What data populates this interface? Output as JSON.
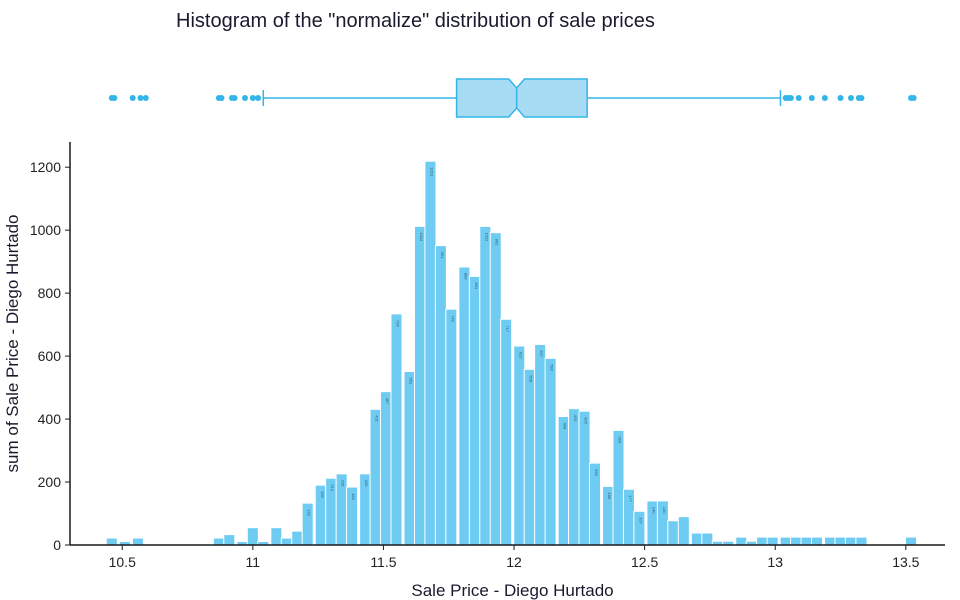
{
  "chart_data": {
    "type": "bar",
    "title": "Histogram of the \"normalize\" distribution of sale prices",
    "xlabel": "Sale Price - Diego Hurtado",
    "ylabel": "sum of Sale Price - Diego Hurtado",
    "xlim": [
      10.3,
      13.65
    ],
    "ylim": [
      0,
      1280
    ],
    "x_ticks": [
      10.5,
      11,
      11.5,
      12,
      12.5,
      13,
      13.5
    ],
    "y_ticks": [
      0,
      200,
      400,
      600,
      800,
      1000,
      1200
    ],
    "bin_width": 0.0423,
    "x": [
      10.46,
      10.51,
      10.56,
      10.87,
      10.91,
      10.96,
      11.0,
      11.04,
      11.09,
      11.13,
      11.17,
      11.21,
      11.26,
      11.3,
      11.34,
      11.38,
      11.43,
      11.47,
      11.51,
      11.55,
      11.6,
      11.64,
      11.68,
      11.72,
      11.76,
      11.81,
      11.85,
      11.89,
      11.93,
      11.97,
      12.02,
      12.06,
      12.1,
      12.14,
      12.19,
      12.23,
      12.27,
      12.31,
      12.36,
      12.4,
      12.44,
      12.48,
      12.53,
      12.57,
      12.61,
      12.65,
      12.7,
      12.74,
      12.78,
      12.82,
      12.87,
      12.91,
      12.95,
      12.99,
      13.04,
      13.08,
      13.12,
      13.16,
      13.21,
      13.25,
      13.29,
      13.33,
      13.52
    ],
    "values": [
      22,
      11,
      22,
      22,
      33,
      11,
      55,
      11,
      55,
      22,
      44,
      133,
      190,
      212,
      226,
      184,
      226,
      431,
      487,
      734,
      551,
      1012,
      1219,
      951,
      749,
      883,
      853,
      1012,
      992,
      717,
      632,
      558,
      637,
      593,
      408,
      433,
      425,
      260,
      186,
      364,
      177,
      107,
      140,
      140,
      77,
      90,
      38,
      38,
      12,
      12,
      25,
      12,
      25,
      25,
      25,
      25,
      25,
      25,
      25,
      25,
      25,
      25,
      25
    ],
    "boxplot": {
      "whisker_low": 11.04,
      "q1": 11.78,
      "median": 12.01,
      "q3": 12.28,
      "whisker_high": 13.02,
      "notch_low": 11.98,
      "notch_high": 12.04,
      "outliers": [
        10.46,
        10.47,
        10.54,
        10.57,
        10.59,
        10.87,
        10.88,
        10.92,
        10.93,
        10.97,
        11.0,
        11.02,
        13.04,
        13.05,
        13.06,
        13.09,
        13.14,
        13.19,
        13.25,
        13.29,
        13.32,
        13.33,
        13.52,
        13.53
      ]
    },
    "grid": false,
    "legend": "none"
  },
  "colors": {
    "bar": "#6ecbf2",
    "box_fill": "#a8dcf5",
    "box_stroke": "#33b5e8",
    "axis": "#1a1a1a"
  }
}
